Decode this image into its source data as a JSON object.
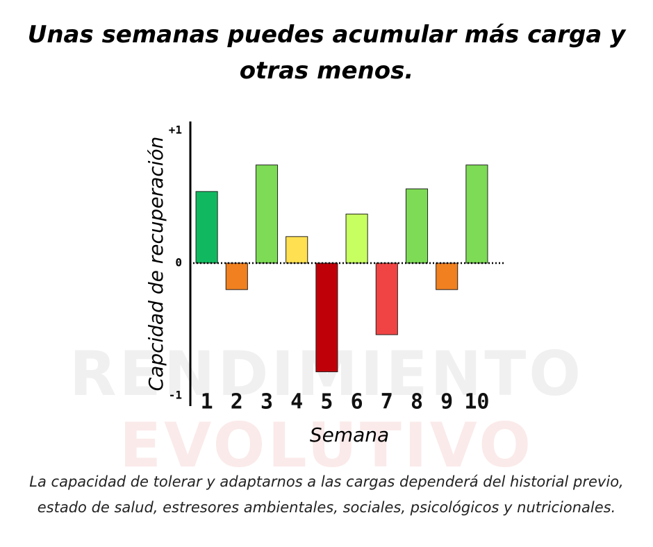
{
  "watermark": [
    "RENDIMIENTO",
    "EVOLUTIVO"
  ],
  "chart_data": {
    "type": "bar",
    "title": "Unas semanas puedes acumular más carga y otras menos.",
    "caption": "La capacidad de tolerar y adaptarnos a las cargas dependerá del historial previo, estado de salud, estresores ambientales, sociales, psicológicos y nutricionales.",
    "x_label": "Semana",
    "y_label": "Capcidad de recuperación",
    "categories": [
      "1",
      "2",
      "3",
      "4",
      "5",
      "6",
      "7",
      "8",
      "9",
      "10"
    ],
    "values": [
      0.54,
      -0.2,
      0.74,
      0.2,
      -0.82,
      0.37,
      -0.54,
      0.56,
      -0.2,
      0.74
    ],
    "colors": [
      "#10b960",
      "#f08020",
      "#7ddb55",
      "#ffe050",
      "#c00008",
      "#c8ff60",
      "#f04444",
      "#7ddb55",
      "#f08020",
      "#7ddb55"
    ],
    "ylim": [
      -1,
      1
    ],
    "yticks": [
      -1,
      0,
      {
        "value": 1,
        "label": "+1"
      }
    ],
    "zero_line": true
  }
}
